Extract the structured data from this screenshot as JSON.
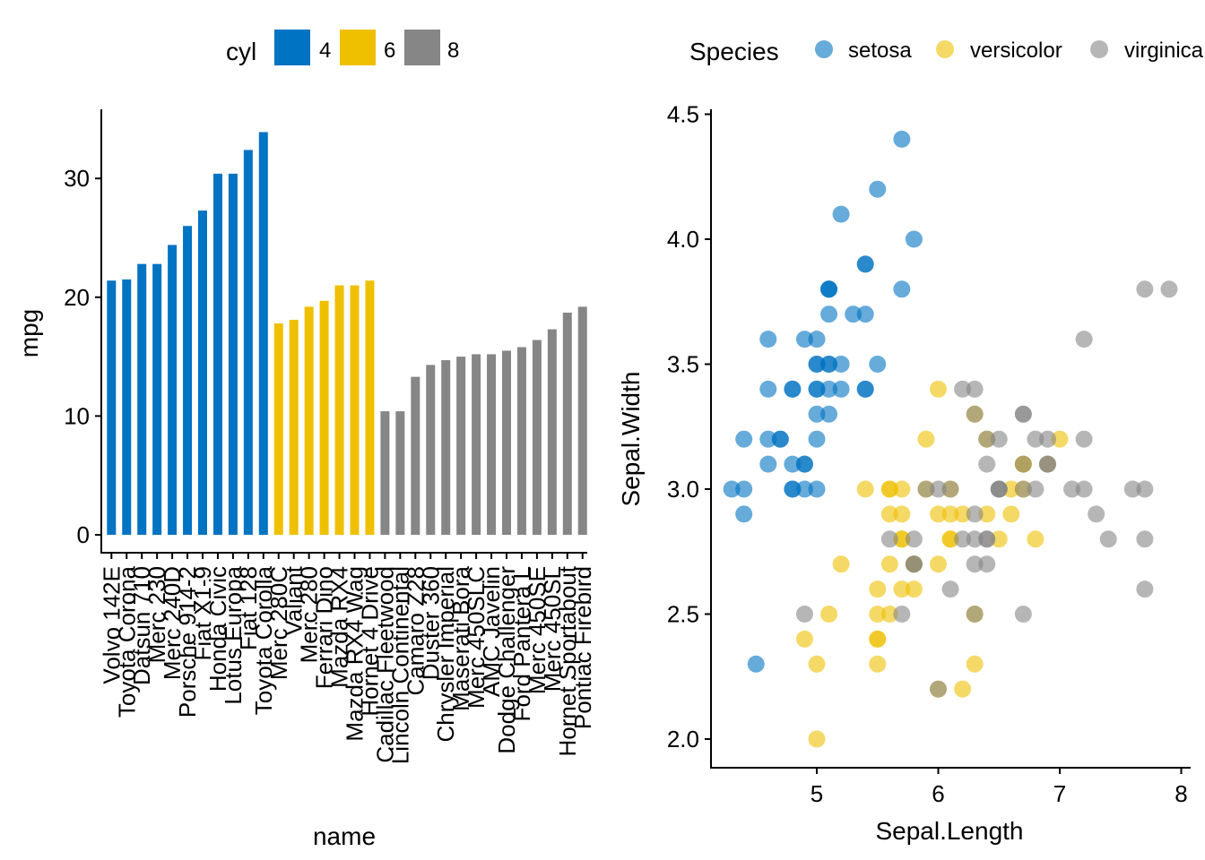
{
  "colors": {
    "c4": "#0073C2",
    "c6": "#EFC000",
    "c8": "#868686"
  },
  "chart_data": [
    {
      "type": "bar",
      "xlabel": "name",
      "ylabel": "mpg",
      "ylim": [
        0,
        35
      ],
      "yticks": [
        0,
        10,
        20,
        30
      ],
      "legend": {
        "title": "cyl",
        "position": "top",
        "entries": [
          {
            "label": "4",
            "color": "#0073C2"
          },
          {
            "label": "6",
            "color": "#EFC000"
          },
          {
            "label": "8",
            "color": "#868686"
          }
        ]
      },
      "categories": [
        "Volvo 142E",
        "Toyota Corona",
        "Datsun 710",
        "Merc 230",
        "Merc 240D",
        "Porsche 914-2",
        "Fiat X1-9",
        "Honda Civic",
        "Lotus Europa",
        "Fiat 128",
        "Toyota Corolla",
        "Merc 280C",
        "Valiant",
        "Merc 280",
        "Ferrari Dino",
        "Mazda RX4",
        "Mazda RX4 Wag",
        "Hornet 4 Drive",
        "Cadillac Fleetwood",
        "Lincoln Continental",
        "Camaro Z28",
        "Duster 360",
        "Chrysler Imperial",
        "Maserati Bora",
        "Merc 450SLC",
        "AMC Javelin",
        "Dodge Challenger",
        "Ford Pantera L",
        "Merc 450SE",
        "Merc 450SL",
        "Hornet Sportabout",
        "Pontiac Firebird"
      ],
      "values": [
        21.4,
        21.5,
        22.8,
        22.8,
        24.4,
        26.0,
        27.3,
        30.4,
        30.4,
        32.4,
        33.9,
        17.8,
        18.1,
        19.2,
        19.7,
        21.0,
        21.0,
        21.4,
        10.4,
        10.4,
        13.3,
        14.3,
        14.7,
        15.0,
        15.2,
        15.2,
        15.5,
        15.8,
        16.4,
        17.3,
        18.7,
        19.2
      ],
      "groups": [
        "4",
        "4",
        "4",
        "4",
        "4",
        "4",
        "4",
        "4",
        "4",
        "4",
        "4",
        "6",
        "6",
        "6",
        "6",
        "6",
        "6",
        "6",
        "8",
        "8",
        "8",
        "8",
        "8",
        "8",
        "8",
        "8",
        "8",
        "8",
        "8",
        "8",
        "8",
        "8"
      ]
    },
    {
      "type": "scatter",
      "xlabel": "Sepal.Length",
      "ylabel": "Sepal.Width",
      "xlim": [
        4.2,
        8.05
      ],
      "ylim": [
        1.9,
        4.5
      ],
      "xticks": [
        5,
        6,
        7,
        8
      ],
      "yticks": [
        "2.0",
        "2.5",
        "3.0",
        "3.5",
        "4.0",
        "4.5"
      ],
      "legend": {
        "title": "Species",
        "position": "top",
        "entries": [
          {
            "label": "setosa",
            "color": "#0073C2"
          },
          {
            "label": "versicolor",
            "color": "#EFC000"
          },
          {
            "label": "virginica",
            "color": "#868686"
          }
        ]
      },
      "series": [
        {
          "name": "setosa",
          "points": [
            [
              5.1,
              3.5
            ],
            [
              4.9,
              3.0
            ],
            [
              4.7,
              3.2
            ],
            [
              4.6,
              3.1
            ],
            [
              5.0,
              3.6
            ],
            [
              5.4,
              3.9
            ],
            [
              4.6,
              3.4
            ],
            [
              5.0,
              3.4
            ],
            [
              4.4,
              2.9
            ],
            [
              4.9,
              3.1
            ],
            [
              5.4,
              3.7
            ],
            [
              4.8,
              3.4
            ],
            [
              4.8,
              3.0
            ],
            [
              4.3,
              3.0
            ],
            [
              5.8,
              4.0
            ],
            [
              5.7,
              4.4
            ],
            [
              5.4,
              3.9
            ],
            [
              5.1,
              3.5
            ],
            [
              5.7,
              3.8
            ],
            [
              5.1,
              3.8
            ],
            [
              5.4,
              3.4
            ],
            [
              5.1,
              3.7
            ],
            [
              4.6,
              3.6
            ],
            [
              5.1,
              3.3
            ],
            [
              4.8,
              3.4
            ],
            [
              5.0,
              3.0
            ],
            [
              5.0,
              3.4
            ],
            [
              5.2,
              3.5
            ],
            [
              5.2,
              3.4
            ],
            [
              4.7,
              3.2
            ],
            [
              4.8,
              3.1
            ],
            [
              5.4,
              3.4
            ],
            [
              5.2,
              4.1
            ],
            [
              5.5,
              4.2
            ],
            [
              4.9,
              3.1
            ],
            [
              5.0,
              3.2
            ],
            [
              5.5,
              3.5
            ],
            [
              4.9,
              3.6
            ],
            [
              4.4,
              3.0
            ],
            [
              5.1,
              3.4
            ],
            [
              5.0,
              3.5
            ],
            [
              4.5,
              2.3
            ],
            [
              4.4,
              3.2
            ],
            [
              5.0,
              3.5
            ],
            [
              5.1,
              3.8
            ],
            [
              4.8,
              3.0
            ],
            [
              5.1,
              3.8
            ],
            [
              4.6,
              3.2
            ],
            [
              5.3,
              3.7
            ],
            [
              5.0,
              3.3
            ]
          ]
        },
        {
          "name": "versicolor",
          "points": [
            [
              7.0,
              3.2
            ],
            [
              6.4,
              3.2
            ],
            [
              6.9,
              3.1
            ],
            [
              5.5,
              2.3
            ],
            [
              6.5,
              2.8
            ],
            [
              5.7,
              2.8
            ],
            [
              6.3,
              3.3
            ],
            [
              4.9,
              2.4
            ],
            [
              6.6,
              2.9
            ],
            [
              5.2,
              2.7
            ],
            [
              5.0,
              2.0
            ],
            [
              5.9,
              3.0
            ],
            [
              6.0,
              2.2
            ],
            [
              6.1,
              2.9
            ],
            [
              5.6,
              2.9
            ],
            [
              6.7,
              3.1
            ],
            [
              5.6,
              3.0
            ],
            [
              5.8,
              2.7
            ],
            [
              6.2,
              2.2
            ],
            [
              5.6,
              2.5
            ],
            [
              5.9,
              3.2
            ],
            [
              6.1,
              2.8
            ],
            [
              6.3,
              2.5
            ],
            [
              6.1,
              2.8
            ],
            [
              6.4,
              2.9
            ],
            [
              6.6,
              3.0
            ],
            [
              6.8,
              2.8
            ],
            [
              6.7,
              3.0
            ],
            [
              6.0,
              2.9
            ],
            [
              5.7,
              2.6
            ],
            [
              5.5,
              2.4
            ],
            [
              5.5,
              2.4
            ],
            [
              5.8,
              2.7
            ],
            [
              6.0,
              2.7
            ],
            [
              5.4,
              3.0
            ],
            [
              6.0,
              3.4
            ],
            [
              6.7,
              3.1
            ],
            [
              6.3,
              2.3
            ],
            [
              5.6,
              3.0
            ],
            [
              5.5,
              2.5
            ],
            [
              5.5,
              2.6
            ],
            [
              6.1,
              3.0
            ],
            [
              5.8,
              2.6
            ],
            [
              5.0,
              2.3
            ],
            [
              5.6,
              2.7
            ],
            [
              5.7,
              3.0
            ],
            [
              5.7,
              2.9
            ],
            [
              6.2,
              2.9
            ],
            [
              5.1,
              2.5
            ],
            [
              5.7,
              2.8
            ]
          ]
        },
        {
          "name": "virginica",
          "points": [
            [
              6.3,
              3.3
            ],
            [
              5.8,
              2.7
            ],
            [
              7.1,
              3.0
            ],
            [
              6.3,
              2.9
            ],
            [
              6.5,
              3.0
            ],
            [
              7.6,
              3.0
            ],
            [
              4.9,
              2.5
            ],
            [
              7.3,
              2.9
            ],
            [
              6.7,
              2.5
            ],
            [
              7.2,
              3.6
            ],
            [
              6.5,
              3.2
            ],
            [
              6.4,
              2.7
            ],
            [
              6.8,
              3.0
            ],
            [
              5.7,
              2.5
            ],
            [
              5.8,
              2.8
            ],
            [
              6.4,
              3.2
            ],
            [
              6.5,
              3.0
            ],
            [
              7.7,
              3.8
            ],
            [
              7.7,
              2.6
            ],
            [
              6.0,
              2.2
            ],
            [
              6.9,
              3.2
            ],
            [
              5.6,
              2.8
            ],
            [
              7.7,
              2.8
            ],
            [
              6.3,
              2.7
            ],
            [
              6.7,
              3.3
            ],
            [
              7.2,
              3.2
            ],
            [
              6.2,
              2.8
            ],
            [
              6.1,
              3.0
            ],
            [
              6.4,
              2.8
            ],
            [
              7.2,
              3.0
            ],
            [
              7.4,
              2.8
            ],
            [
              7.9,
              3.8
            ],
            [
              6.4,
              2.8
            ],
            [
              6.3,
              2.8
            ],
            [
              6.1,
              2.6
            ],
            [
              7.7,
              3.0
            ],
            [
              6.3,
              3.4
            ],
            [
              6.4,
              3.1
            ],
            [
              6.0,
              3.0
            ],
            [
              6.9,
              3.1
            ],
            [
              6.7,
              3.1
            ],
            [
              6.9,
              3.1
            ],
            [
              5.8,
              2.7
            ],
            [
              6.8,
              3.2
            ],
            [
              6.7,
              3.3
            ],
            [
              6.7,
              3.0
            ],
            [
              6.3,
              2.5
            ],
            [
              6.5,
              3.0
            ],
            [
              6.2,
              3.4
            ],
            [
              5.9,
              3.0
            ]
          ]
        }
      ]
    }
  ]
}
